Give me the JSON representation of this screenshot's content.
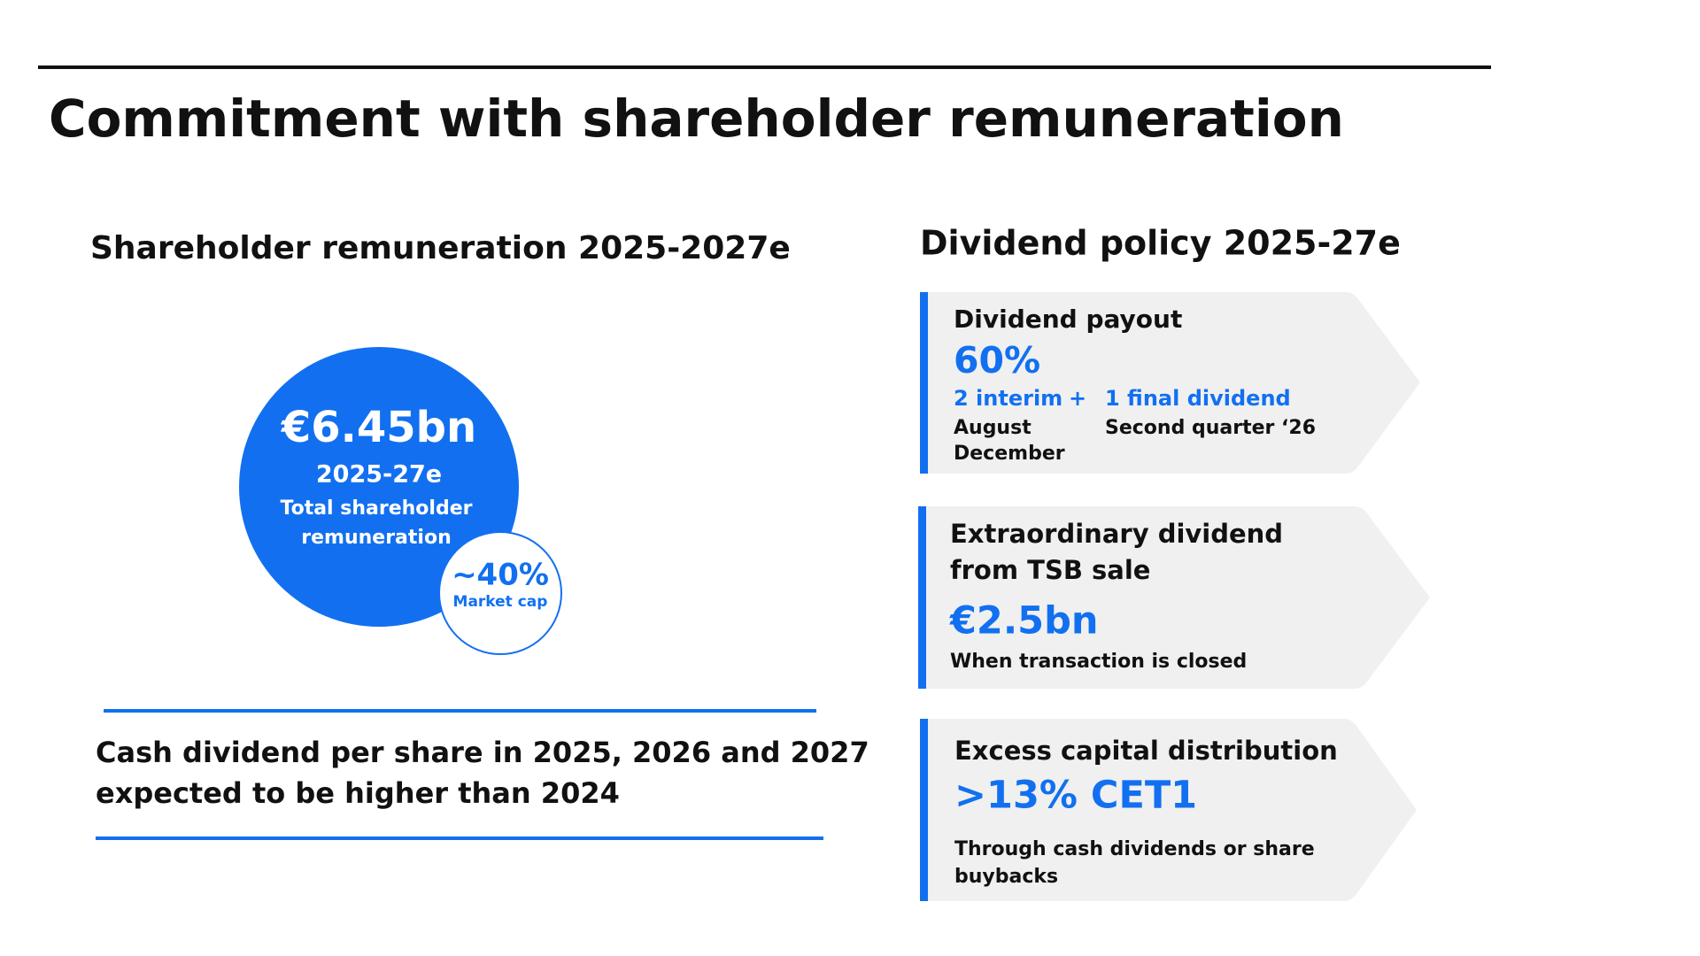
{
  "header": {
    "title": "Commitment with shareholder remuneration"
  },
  "left": {
    "title": "Shareholder remuneration 2025-2027e",
    "circle": {
      "amount": "€6.45bn",
      "period": "2025-27e",
      "label_lines": [
        "Total shareholder",
        "remuneration"
      ]
    },
    "badge": {
      "value": "~40%",
      "label": "Market cap"
    },
    "note_lines": [
      "Cash dividend per share in 2025, 2026 and 2027",
      "expected to be higher than 2024"
    ]
  },
  "right": {
    "title": "Dividend policy 2025-27e",
    "cards": [
      {
        "title_lines": [
          "Dividend payout"
        ],
        "value": "60%",
        "interim": "2 interim",
        "plus": "+",
        "final": "1 final dividend",
        "interim_dates": [
          "August",
          "December"
        ],
        "final_date": "Second quarter ‘26"
      },
      {
        "title_lines": [
          "Extraordinary dividend",
          "from TSB sale"
        ],
        "value": "€2.5bn",
        "note_lines": [
          "When transaction is closed"
        ]
      },
      {
        "title_lines": [
          "Excess capital distribution"
        ],
        "value": ">13% CET1",
        "note_lines": [
          "Through cash dividends or share",
          "buybacks"
        ]
      }
    ]
  }
}
